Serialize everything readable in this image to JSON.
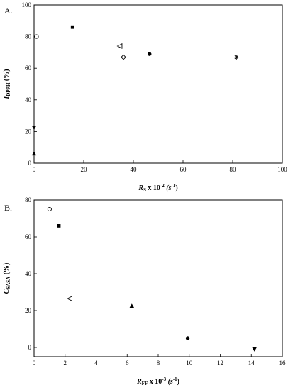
{
  "chart_data": [
    {
      "type": "scatter",
      "panel_label": "A.",
      "xlim": [
        0,
        100
      ],
      "ylim": [
        0,
        100
      ],
      "xticks": [
        0,
        20,
        40,
        60,
        80,
        100
      ],
      "yticks": [
        0,
        20,
        40,
        60,
        80,
        100
      ],
      "ylabel": {
        "main": "I",
        "sub": "DPPH",
        "suffix": " (%)"
      },
      "xlabel": {
        "main": "R",
        "sub": "S",
        "suffix": " x 10",
        "sup": "-2",
        "unit": " (s",
        "unit_sup": "-1",
        "unit_end": ")"
      },
      "grid": false,
      "legend": "none",
      "points": [
        {
          "x": 1.0,
          "y": 80.0,
          "marker": "circle-open"
        },
        {
          "x": 15.5,
          "y": 86.0,
          "marker": "square-filled"
        },
        {
          "x": 34.5,
          "y": 74.0,
          "marker": "triangle-left-open"
        },
        {
          "x": 36.0,
          "y": 67.0,
          "marker": "diamond-open"
        },
        {
          "x": 46.5,
          "y": 69.0,
          "marker": "circle-filled"
        },
        {
          "x": 81.5,
          "y": 67.0,
          "marker": "asterisk"
        },
        {
          "x": 0.0,
          "y": 22.5,
          "marker": "triangle-down-filled"
        },
        {
          "x": 0.0,
          "y": 6.0,
          "marker": "triangle-up-filled"
        }
      ]
    },
    {
      "type": "scatter",
      "panel_label": "B.",
      "xlim": [
        0,
        16
      ],
      "ylim": [
        -5,
        80
      ],
      "xticks": [
        0,
        2,
        4,
        6,
        8,
        10,
        12,
        14,
        16
      ],
      "yticks": [
        0,
        20,
        40,
        60,
        80
      ],
      "ylabel": {
        "main": "C",
        "sub": "SASA",
        "suffix": " (%)"
      },
      "xlabel": {
        "main": "R",
        "sub": "FF",
        "suffix": " x 10",
        "sup": "-3",
        "unit": " (s",
        "unit_sup": "-1",
        "unit_end": ")"
      },
      "grid": false,
      "legend": "none",
      "points": [
        {
          "x": 1.0,
          "y": 75.0,
          "marker": "circle-open"
        },
        {
          "x": 1.6,
          "y": 66.0,
          "marker": "square-filled"
        },
        {
          "x": 2.3,
          "y": 26.5,
          "marker": "triangle-left-open"
        },
        {
          "x": 6.3,
          "y": 22.5,
          "marker": "triangle-up-filled"
        },
        {
          "x": 9.9,
          "y": 5.0,
          "marker": "circle-filled"
        },
        {
          "x": 14.2,
          "y": -1.0,
          "marker": "triangle-down-filled"
        }
      ]
    }
  ]
}
